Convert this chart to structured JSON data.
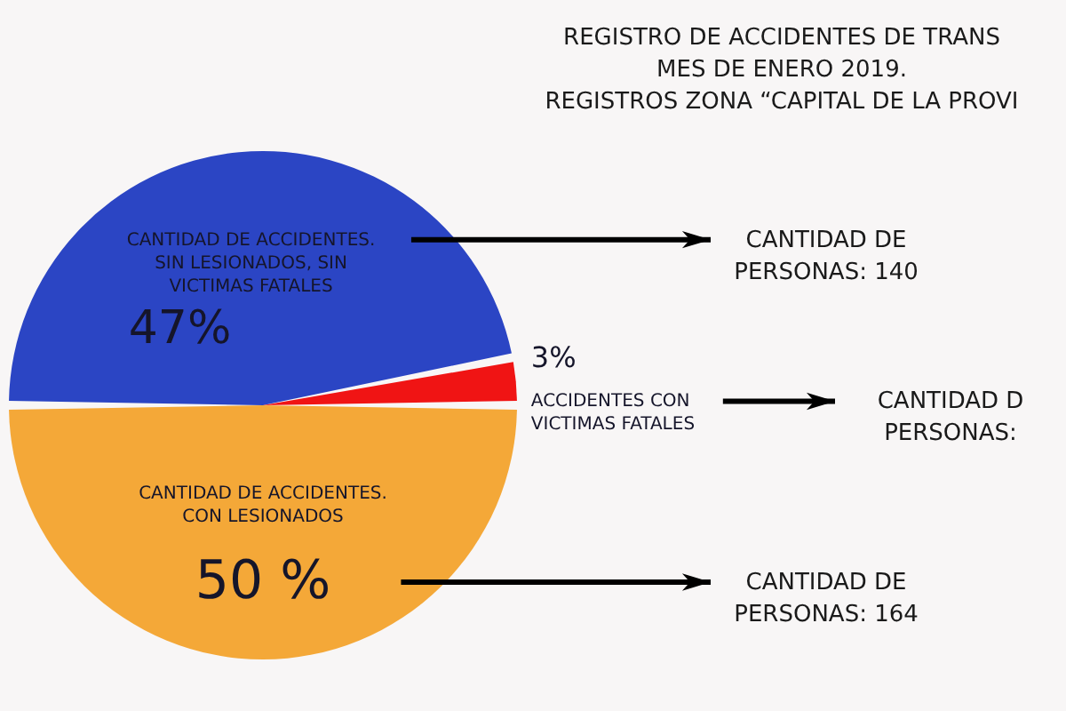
{
  "chart_data": {
    "type": "pie",
    "title": "REGISTRO DE ACCIDENTES DE TRANS\nMES DE ENERO 2019.\nREGISTROS ZONA “CAPITAL DE LA PROVI",
    "categories": [
      "CANTIDAD DE ACCIDENTES.\nSIN LESIONADOS, SIN\nVICTIMAS FATALES",
      "ACCIDENTES CON\nVICTIMAS FATALES",
      "CANTIDAD DE ACCIDENTES.\nCON LESIONADOS"
    ],
    "values": [
      47,
      3,
      50
    ],
    "value_labels": [
      "47%",
      "3%",
      "50 %"
    ],
    "colors": [
      "#2b45c4",
      "#f01414",
      "#f4a838"
    ],
    "annotations": [
      "CANTIDAD DE\nPERSONAS: 140",
      "CANTIDAD D\nPERSONAS:",
      "CANTIDAD DE\nPERSONAS: 164"
    ]
  }
}
